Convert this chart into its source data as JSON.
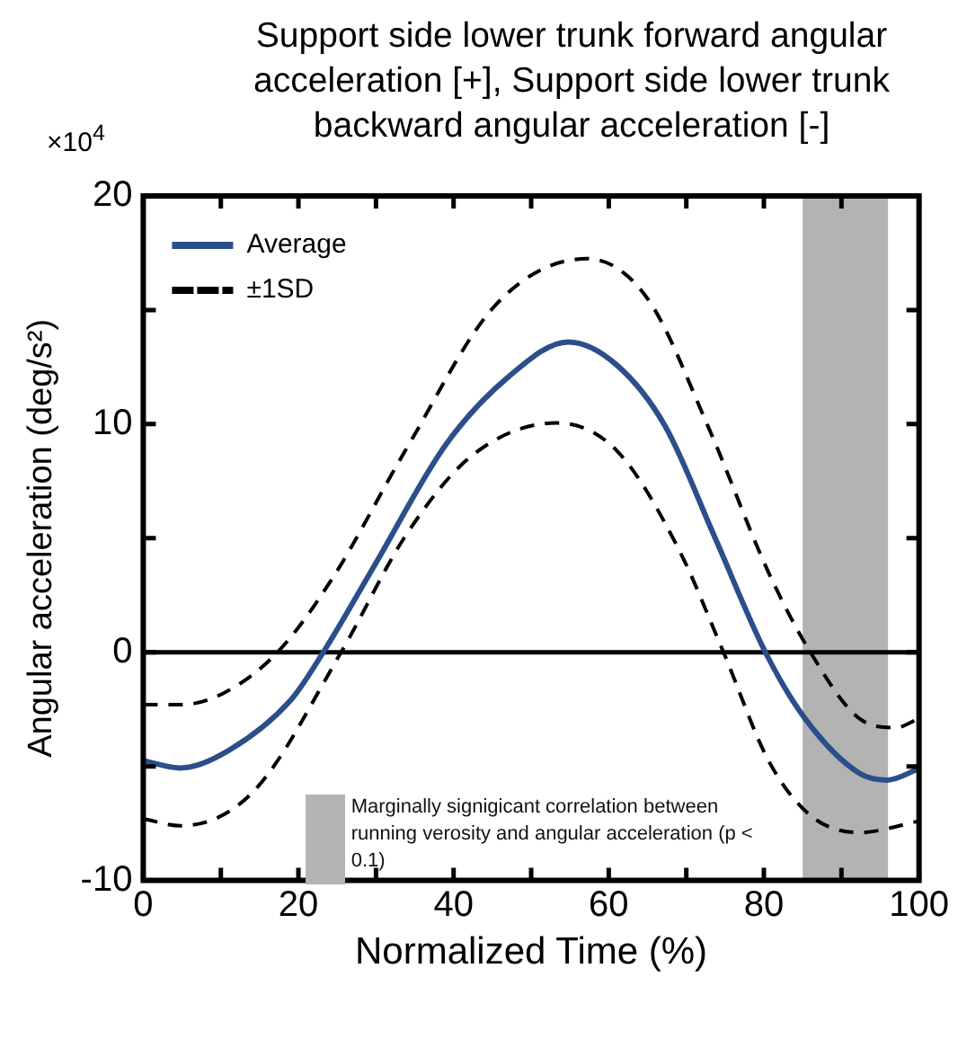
{
  "chart_data": {
    "type": "line",
    "title": "Support side lower trunk forward angular acceleration [+], Support side lower trunk backward angular acceleration [-]",
    "xlabel": "Normalized Time (%)",
    "ylabel": "Angular acceleration (deg/s²)",
    "annotations": [
      "×10$^{4}$"
    ],
    "series": [
      {
        "name": "Average",
        "color": "#2a4f8a",
        "line_style": "solid",
        "x": [
          0,
          4.8,
          10,
          19,
          23.2,
          29.8,
          39,
          47,
          54.8,
          61,
          67.3,
          73.6,
          80.2,
          85.3,
          92.3,
          95.9,
          100
        ],
        "values": [
          -4.75,
          -5.07,
          -4.5,
          -2.1,
          0,
          3.8,
          9.1,
          12.05,
          13.6,
          12.6,
          9.9,
          5.1,
          0,
          -2.9,
          -5.3,
          -5.6,
          -5.1
        ]
      },
      {
        "name": "±1SD",
        "color": "#000000",
        "line_style": "dashed",
        "x": [
          0,
          4.8,
          10.3,
          17.3,
          24.4,
          33.8,
          45.5,
          57.2,
          65,
          72.8,
          80.6,
          86,
          92.3,
          97,
          100
        ],
        "values": [
          -2.3,
          -2.3,
          -1.8,
          0,
          3.25,
          8.85,
          15.25,
          17.25,
          15.5,
          9.9,
          3.5,
          0,
          -2.9,
          -3.3,
          -2.9
        ]
      },
      {
        "color": "#000000",
        "line_style": "dashed",
        "x": [
          0,
          4.8,
          14.2,
          25.5,
          33.8,
          42.3,
          53.3,
          61,
          68.9,
          74.8,
          80.6,
          86,
          92.3,
          100
        ],
        "values": [
          -7.3,
          -7.6,
          -6.1,
          0,
          5.1,
          8.6,
          10.05,
          8.85,
          4.6,
          0,
          -4.75,
          -7.15,
          -7.9,
          -7.4
        ]
      }
    ],
    "xlim": [
      0,
      100
    ],
    "xticks": [
      0,
      {
        "value": 10,
        "label": null
      },
      20,
      {
        "value": 30,
        "label": null
      },
      40,
      {
        "value": 50,
        "label": null
      },
      60,
      {
        "value": 70,
        "label": null
      },
      80,
      {
        "value": 90,
        "label": null
      },
      100
    ],
    "ylim": [
      -10,
      20
    ],
    "yticks": [
      -10,
      {
        "value": -5,
        "label": null
      },
      0,
      {
        "value": 5,
        "label": null
      },
      10,
      {
        "value": 15,
        "label": null
      },
      20
    ],
    "ref_lines": [
      {
        "axis": "y",
        "value": 0,
        "color": "#000000",
        "line_style": "solid"
      }
    ],
    "bands": [
      {
        "axis": "x",
        "from": 85,
        "to": 96,
        "color": "#b3b3b3",
        "label": "Marginally signigicant correlation between running verosity and angular acceleration (p < 0.1)"
      }
    ],
    "grid": false,
    "legend": "top left",
    "marker": "none"
  }
}
